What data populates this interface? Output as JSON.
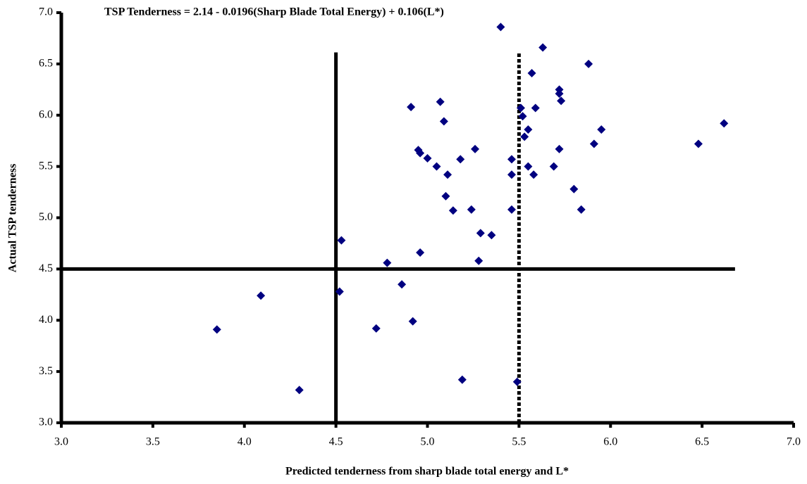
{
  "chart_data": {
    "type": "scatter",
    "title": "TSP Tenderness = 2.14 - 0.0196(Sharp Blade Total Energy) + 0.106(L*)",
    "x_label": "Predicted tenderness from sharp blade total energy and L*",
    "y_label": "Actual TSP tenderness",
    "color": "#000080",
    "x": [
      3.85,
      4.09,
      4.3,
      4.52,
      4.53,
      4.78,
      4.72,
      4.86,
      4.92,
      4.96,
      4.91,
      4.95,
      4.96,
      5.0,
      5.05,
      5.07,
      5.09,
      5.1,
      5.11,
      5.14,
      5.18,
      5.24,
      5.26,
      5.29,
      5.28,
      5.35,
      5.19,
      5.4,
      5.46,
      5.46,
      5.46,
      5.49,
      5.51,
      5.52,
      5.53,
      5.55,
      5.55,
      5.57,
      5.58,
      5.59,
      5.63,
      5.72,
      5.72,
      5.73,
      5.72,
      5.69,
      5.8,
      5.84,
      5.88,
      5.91,
      5.95,
      6.48,
      6.62
    ],
    "y": [
      3.91,
      4.24,
      3.32,
      4.28,
      4.78,
      4.56,
      3.92,
      4.35,
      3.99,
      4.66,
      6.08,
      5.66,
      5.63,
      5.58,
      5.5,
      6.13,
      5.94,
      5.21,
      5.42,
      5.07,
      5.57,
      5.08,
      5.67,
      4.85,
      4.58,
      4.83,
      3.42,
      6.86,
      5.57,
      5.42,
      5.08,
      3.4,
      6.07,
      5.99,
      5.79,
      5.86,
      5.5,
      6.41,
      5.42,
      6.07,
      6.66,
      6.25,
      6.21,
      6.14,
      5.67,
      5.5,
      5.28,
      5.08,
      6.5,
      5.72,
      5.86,
      5.72,
      5.92
    ],
    "xlim": [
      3.0,
      7.0
    ],
    "ylim": [
      3.0,
      7.0
    ],
    "xticks": [
      {
        "value": 3.0,
        "label": "3.0"
      },
      3.5,
      {
        "value": 4.0,
        "label": "4.0"
      },
      4.5,
      {
        "value": 5.0,
        "label": "5.0"
      },
      5.5,
      {
        "value": 6.0,
        "label": "6.0"
      },
      6.5,
      {
        "value": 7.0,
        "label": "7.0"
      }
    ],
    "yticks": [
      {
        "value": 3.0,
        "label": "3.0"
      },
      3.5,
      {
        "value": 4.0,
        "label": "4.0"
      },
      4.5,
      {
        "value": 5.0,
        "label": "5.0"
      },
      5.5,
      {
        "value": 6.0,
        "label": "6.0"
      },
      6.5,
      {
        "value": 7.0,
        "label": "7.0"
      }
    ],
    "hlines": [
      4.5
    ],
    "vlines": [
      {
        "value": 4.5,
        "style": "solid"
      },
      {
        "value": 5.5,
        "style": "dotted"
      }
    ]
  }
}
